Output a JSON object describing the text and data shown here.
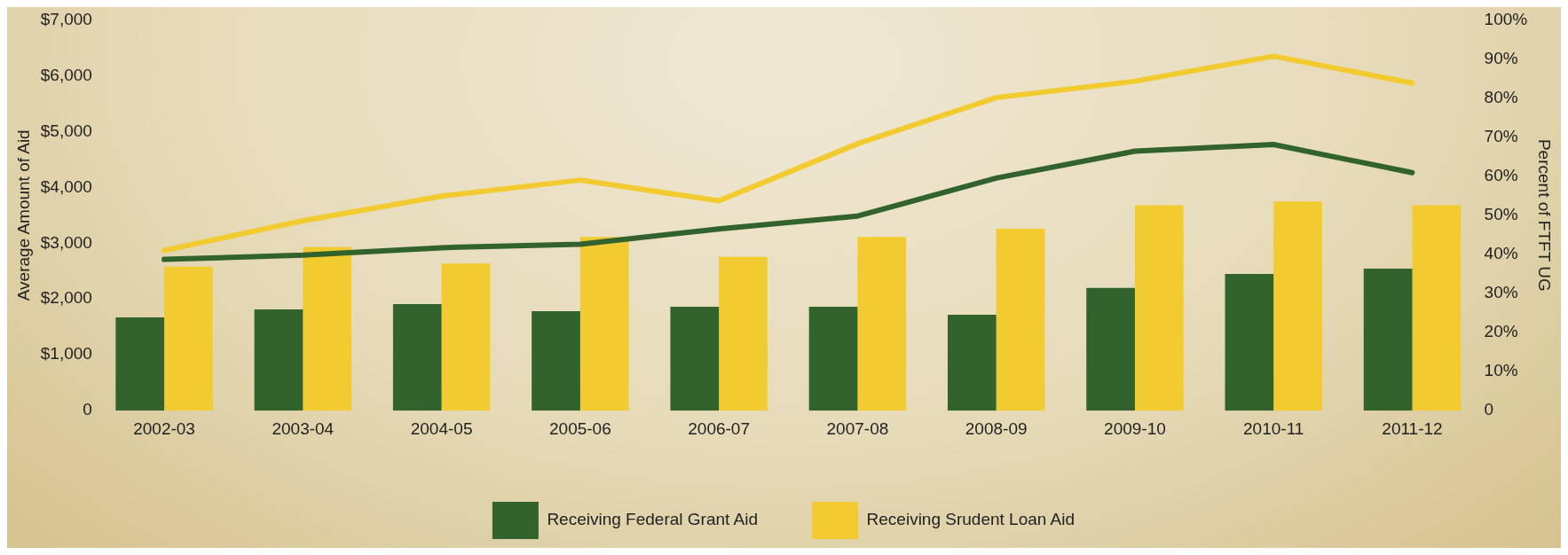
{
  "chart_data": {
    "type": "bar",
    "ylabel": "Average Amount of Aid",
    "y2label": "Percent of FTFT UG",
    "categories": [
      "2002-03",
      "2003-04",
      "2004-05",
      "2005-06",
      "2006-07",
      "2007-08",
      "2008-09",
      "2009-10",
      "2010-11",
      "2011-12"
    ],
    "series": [
      {
        "name": "Receiving Federal Grant Aid",
        "color": "#33632c",
        "values": [
          1670,
          1815,
          1910,
          1780,
          1860,
          1860,
          1720,
          2200,
          2450,
          2545
        ]
      },
      {
        "name": "Receiving Srudent Loan Aid",
        "color": "#f2cb30",
        "values": [
          2580,
          2930,
          2640,
          3110,
          2755,
          3110,
          3260,
          3680,
          3745,
          3680
        ]
      },
      {
        "type": "line",
        "axis": "y2",
        "color": "#33632c",
        "values": [
          38.7,
          39.8,
          41.7,
          42.6,
          46.5,
          49.8,
          59.5,
          66.4,
          68.1,
          60.9
        ]
      },
      {
        "type": "line",
        "axis": "y2",
        "color": "#f2cb30",
        "values": [
          41,
          48.6,
          54.9,
          59,
          53.7,
          68.3,
          80.1,
          84.3,
          90.7,
          83.8
        ]
      }
    ],
    "ylim": [
      0,
      7000
    ],
    "yticks": [
      {
        "value": 0,
        "label": "0"
      },
      {
        "value": 1000,
        "label": "$1,000"
      },
      {
        "value": 2000,
        "label": "$2,000"
      },
      {
        "value": 3000,
        "label": "$3,000"
      },
      {
        "value": 4000,
        "label": "$4,000"
      },
      {
        "value": 5000,
        "label": "$5,000"
      },
      {
        "value": 6000,
        "label": "$6,000"
      },
      {
        "value": 7000,
        "label": "$7,000"
      }
    ],
    "y2lim": [
      0,
      100
    ],
    "y2ticks": [
      {
        "value": 0,
        "label": "0"
      },
      {
        "value": 10,
        "label": "10%"
      },
      {
        "value": 20,
        "label": "20%"
      },
      {
        "value": 30,
        "label": "30%"
      },
      {
        "value": 40,
        "label": "40%"
      },
      {
        "value": 50,
        "label": "50%"
      },
      {
        "value": 60,
        "label": "60%"
      },
      {
        "value": 70,
        "label": "70%"
      },
      {
        "value": 80,
        "label": "80%"
      },
      {
        "value": 90,
        "label": "90%"
      },
      {
        "value": 100,
        "label": "100%"
      }
    ],
    "grid": false,
    "legend": "bottom",
    "marker": "none"
  }
}
